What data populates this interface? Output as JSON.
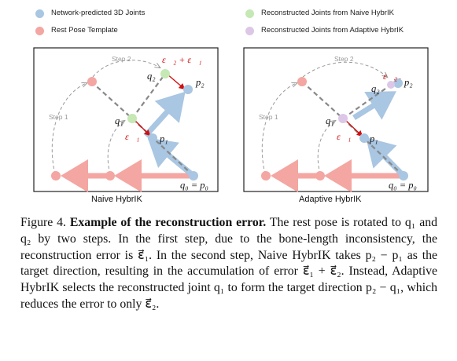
{
  "legend": {
    "network_joints": "Network-predicted 3D Joints",
    "rest_pose": "Rest Pose Template",
    "naive_joints": "Reconstructed Joints from Naive HybrIK",
    "adaptive_joints": "Reconstructed Joints from Adaptive HybrIK"
  },
  "colors": {
    "network_blue": "#a9c6e2",
    "rest_pink": "#f4a6a2",
    "naive_green": "#c5e8b4",
    "adaptive_purple": "#dcc8e6",
    "error_red": "#d01010",
    "dashed_gray": "#888888"
  },
  "figure_labels": {
    "step1": "Step 1",
    "step2": "Step 2",
    "q0_p0": "q₀ = p₀",
    "p1": "p₁",
    "p2": "p₂",
    "q1": "q₁",
    "q2": "q₂",
    "eps1": "ε⃗₁",
    "eps2": "ε⃗₂",
    "eps_sum": "ε⃗₂ + ε⃗₁"
  },
  "panels": {
    "naive_label": "Naive HybrIK",
    "adaptive_label": "Adaptive HybrIK"
  },
  "caption": {
    "figure_number": "Figure 4.",
    "title": "Example of the reconstruction error.",
    "body": "The rest pose is rotated to q₁ and q₂ by two steps. In the first step, due to the bone-length inconsistency, the reconstruction error is ε⃗₁. In the second step, Naive HybrIK takes p₂ − p₁ as the target direction, resulting in the accumulation of error ε⃗₁ + ε⃗₂. Instead, Adaptive HybrIK selects the reconstructed joint q₁ to form the target direction p₂ − q₁, which reduces the error to only ε⃗₂."
  }
}
